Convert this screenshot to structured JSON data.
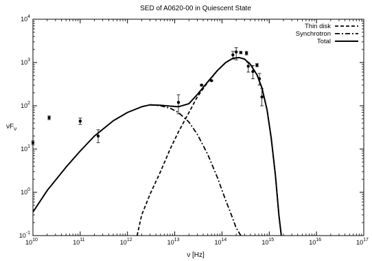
{
  "chart_data": {
    "type": "scatter",
    "title": "SED of A0620-00 in Quiescent State",
    "xlabel": "ν [Hz]",
    "ylabel": "νFν",
    "xscale": "log",
    "yscale": "log",
    "xlim": [
      10000000000.0,
      1e+17
    ],
    "ylim": [
      0.1,
      10000
    ],
    "x_ticks": [
      {
        "value": 10000000000.0,
        "mant": "10",
        "exp": "10"
      },
      {
        "value": 100000000000.0,
        "mant": "10",
        "exp": "11"
      },
      {
        "value": 1000000000000.0,
        "mant": "10",
        "exp": "12"
      },
      {
        "value": 10000000000000.0,
        "mant": "10",
        "exp": "13"
      },
      {
        "value": 100000000000000.0,
        "mant": "10",
        "exp": "14"
      },
      {
        "value": 1000000000000000.0,
        "mant": "10",
        "exp": "15"
      },
      {
        "value": 1e+16,
        "mant": "10",
        "exp": "16"
      },
      {
        "value": 1e+17,
        "mant": "10",
        "exp": "17"
      }
    ],
    "y_ticks": [
      {
        "value": 0.1,
        "mant": "10",
        "exp": "-1"
      },
      {
        "value": 1,
        "mant": "10",
        "exp": "0"
      },
      {
        "value": 10,
        "mant": "10",
        "exp": "1"
      },
      {
        "value": 100,
        "mant": "10",
        "exp": "2"
      },
      {
        "value": 1000,
        "mant": "10",
        "exp": "3"
      },
      {
        "value": 10000,
        "mant": "10",
        "exp": "4"
      }
    ],
    "legend_position": "top-right",
    "series": [
      {
        "name": "Thin disk",
        "style": "dashed",
        "x": [
          1600000000000.0,
          2000000000000.0,
          3000000000000.0,
          5000000000000.0,
          8000000000000.0,
          12000000000000.0,
          20000000000000.0,
          30000000000000.0,
          50000000000000.0,
          80000000000000.0,
          120000000000000.0,
          170000000000000.0,
          230000000000000.0,
          300000000000000.0,
          400000000000000.0,
          550000000000000.0,
          700000000000000.0,
          900000000000000.0,
          1100000000000000.0,
          1350000000000000.0,
          1600000000000000.0,
          1800000000000000.0
        ],
        "y": [
          0.1,
          0.3,
          0.9,
          3,
          10,
          25,
          70,
          160,
          350,
          650,
          1000,
          1250,
          1300,
          1200,
          900,
          520,
          260,
          80,
          18,
          2.5,
          0.3,
          0.1
        ]
      },
      {
        "name": "Synchrotron",
        "style": "dashdot",
        "x": [
          3000000000000.0,
          5000000000000.0,
          8000000000000.0,
          12000000000000.0,
          20000000000000.0,
          30000000000000.0,
          50000000000000.0,
          80000000000000.0,
          120000000000000.0,
          150000000000000.0,
          200000000000000.0,
          250000000000000.0
        ],
        "y": [
          105,
          100,
          88,
          70,
          42,
          22,
          7.5,
          2.2,
          0.65,
          0.35,
          0.15,
          0.1
        ]
      },
      {
        "name": "Total",
        "style": "solid",
        "x": [
          10000000000.0,
          20000000000.0,
          50000000000.0,
          100000000000.0,
          200000000000.0,
          500000000000.0,
          1000000000000.0,
          2000000000000.0,
          3000000000000.0,
          5000000000000.0,
          8000000000000.0,
          12000000000000.0,
          20000000000000.0,
          30000000000000.0,
          50000000000000.0,
          80000000000000.0,
          120000000000000.0,
          170000000000000.0,
          230000000000000.0,
          300000000000000.0,
          400000000000000.0,
          550000000000000.0,
          700000000000000.0,
          900000000000000.0,
          1100000000000000.0,
          1350000000000000.0,
          1600000000000000.0,
          1800000000000000.0
        ],
        "y": [
          0.35,
          1.1,
          3.8,
          9,
          20,
          45,
          70,
          95,
          105,
          103,
          98,
          95,
          112,
          182,
          357,
          652,
          1001,
          1250,
          1300,
          1200,
          900,
          520,
          260,
          80,
          18,
          2.5,
          0.3,
          0.1
        ]
      },
      {
        "name": "",
        "style": "points",
        "points": [
          {
            "x": 10000000000.0,
            "y": 14,
            "lo": 12.5,
            "hi": 15.5
          },
          {
            "x": 22000000000.0,
            "y": 53,
            "lo": 48,
            "hi": 58
          },
          {
            "x": 100000000000.0,
            "y": 44,
            "lo": 37,
            "hi": 52
          },
          {
            "x": 240000000000.0,
            "y": 20,
            "lo": 14,
            "hi": 28
          },
          {
            "x": 12000000000000.0,
            "y": 120,
            "lo": 65,
            "hi": 180
          },
          {
            "x": 37000000000000.0,
            "y": 300,
            "lo": 290,
            "hi": 310
          },
          {
            "x": 60000000000000.0,
            "y": 380,
            "lo": 370,
            "hi": 390
          },
          {
            "x": 170000000000000.0,
            "y": 1500,
            "lo": 1200,
            "hi": 1800
          },
          {
            "x": 200000000000000.0,
            "y": 1750,
            "lo": 1150,
            "hi": 2200
          },
          {
            "x": 250000000000000.0,
            "y": 1700,
            "lo": 1600,
            "hi": 1800
          },
          {
            "x": 330000000000000.0,
            "y": 1650,
            "lo": 1500,
            "hi": 1800
          },
          {
            "x": 360000000000000.0,
            "y": 820,
            "lo": 600,
            "hi": 1000
          },
          {
            "x": 450000000000000.0,
            "y": 620,
            "lo": 420,
            "hi": 850
          },
          {
            "x": 550000000000000.0,
            "y": 870,
            "lo": 800,
            "hi": 940
          },
          {
            "x": 620000000000000.0,
            "y": 420,
            "lo": 300,
            "hi": 560
          },
          {
            "x": 700000000000000.0,
            "y": 160,
            "lo": 100,
            "hi": 250
          }
        ]
      }
    ]
  }
}
